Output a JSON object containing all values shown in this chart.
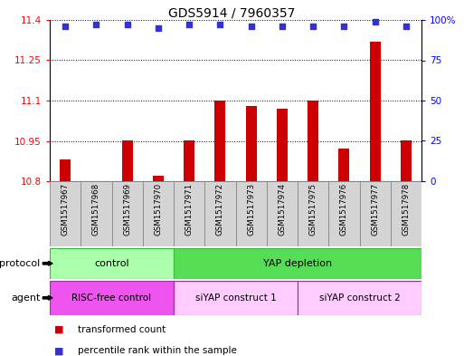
{
  "title": "GDS5914 / 7960357",
  "samples": [
    "GSM1517967",
    "GSM1517968",
    "GSM1517969",
    "GSM1517970",
    "GSM1517971",
    "GSM1517972",
    "GSM1517973",
    "GSM1517974",
    "GSM1517975",
    "GSM1517976",
    "GSM1517977",
    "GSM1517978"
  ],
  "transformed_counts": [
    10.88,
    10.8,
    10.95,
    10.82,
    10.95,
    11.1,
    11.08,
    11.07,
    11.1,
    10.92,
    11.32,
    10.95
  ],
  "percentile_ranks": [
    96,
    97,
    97,
    95,
    97,
    97,
    96,
    96,
    96,
    96,
    99,
    96
  ],
  "ylim_left": [
    10.8,
    11.4
  ],
  "ylim_right": [
    0,
    100
  ],
  "yticks_left": [
    10.8,
    10.95,
    11.1,
    11.25,
    11.4
  ],
  "yticks_right": [
    0,
    25,
    50,
    75,
    100
  ],
  "bar_color": "#cc0000",
  "dot_color": "#3333cc",
  "protocol_groups": [
    {
      "label": "control",
      "start": 0,
      "end": 3,
      "color": "#aaffaa",
      "edge_color": "#33bb33"
    },
    {
      "label": "YAP depletion",
      "start": 4,
      "end": 11,
      "color": "#55dd55",
      "edge_color": "#33bb33"
    }
  ],
  "agent_groups": [
    {
      "label": "RISC-free control",
      "start": 0,
      "end": 3,
      "color": "#ee66ee",
      "edge_color": "#aa22aa"
    },
    {
      "label": "siYAP construct 1",
      "start": 4,
      "end": 7,
      "color": "#ffaaff",
      "edge_color": "#aa22aa"
    },
    {
      "label": "siYAP construct 2",
      "start": 8,
      "end": 11,
      "color": "#ffaaff",
      "edge_color": "#aa22aa"
    }
  ],
  "legend_items": [
    {
      "label": "transformed count",
      "color": "#cc0000"
    },
    {
      "label": "percentile rank within the sample",
      "color": "#3333cc"
    }
  ],
  "label_protocol": "protocol",
  "label_agent": "agent",
  "bar_bottom": 10.8,
  "sample_cell_color": "#d4d4d4",
  "sample_cell_edge": "#888888",
  "title_fontsize": 10,
  "axis_fontsize": 7.5,
  "label_fontsize": 8,
  "bar_width": 0.35
}
